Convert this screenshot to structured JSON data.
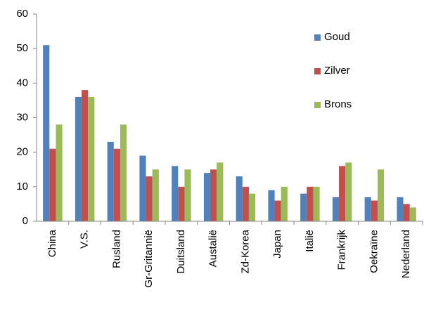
{
  "chart_data": {
    "type": "bar",
    "categories": [
      "China",
      "V.S.",
      "Rusland",
      "Gr-Gritannië",
      "Duitsland",
      "Austalië",
      "Zd-Korea",
      "Japan",
      "Italië",
      "Frankrijk",
      "Oekraïne",
      "Nederland"
    ],
    "series": [
      {
        "name": "Goud",
        "color": "#4f81bd",
        "values": [
          51,
          36,
          23,
          19,
          16,
          14,
          13,
          9,
          8,
          7,
          7,
          7
        ]
      },
      {
        "name": "Zilver",
        "color": "#c0504d",
        "values": [
          21,
          38,
          21,
          13,
          10,
          15,
          10,
          6,
          10,
          16,
          6,
          5
        ]
      },
      {
        "name": "Brons",
        "color": "#9bbb59",
        "values": [
          28,
          36,
          28,
          15,
          15,
          17,
          8,
          10,
          10,
          17,
          15,
          4
        ]
      }
    ],
    "ylim": [
      0,
      60
    ],
    "yticks": [
      0,
      10,
      20,
      30,
      40,
      50,
      60
    ],
    "grid": false,
    "legend": "upper right"
  }
}
